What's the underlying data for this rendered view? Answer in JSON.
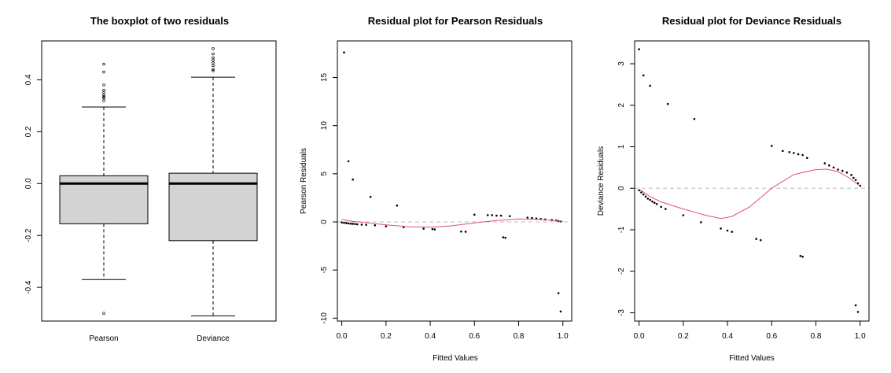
{
  "panels": [
    {
      "title": "The boxplot of two residuals",
      "categories": [
        "Pearson",
        "Deviance"
      ],
      "yticks": [
        "-0.4",
        "-0.2",
        "0.0",
        "0.2",
        "0.4"
      ]
    },
    {
      "title": "Residual plot for Pearson Residuals",
      "xlabel": "Fitted Values",
      "ylabel": "Pearson Residuals",
      "xticks": [
        "0.0",
        "0.2",
        "0.4",
        "0.6",
        "0.8",
        "1.0"
      ],
      "yticks": [
        "-10",
        "-5",
        "0",
        "5",
        "10",
        "15"
      ]
    },
    {
      "title": "Residual plot for Deviance Residuals",
      "xlabel": "Fitted Values",
      "ylabel": "Deviance Residuals",
      "xticks": [
        "0.0",
        "0.2",
        "0.4",
        "0.6",
        "0.8",
        "1.0"
      ],
      "yticks": [
        "-3",
        "-2",
        "-1",
        "0",
        "1",
        "2",
        "3"
      ]
    }
  ],
  "chart_data": [
    {
      "type": "boxplot",
      "title": "The boxplot of two residuals",
      "categories": [
        "Pearson",
        "Deviance"
      ],
      "ylim": [
        -0.53,
        0.55
      ],
      "box_color": "#d3d3d3",
      "boxes": [
        {
          "name": "Pearson",
          "lower_whisker": -0.37,
          "q1": -0.155,
          "median": 0.0,
          "q3": 0.03,
          "upper_whisker": 0.295,
          "outliers": [
            0.46,
            0.43,
            0.38,
            0.36,
            0.35,
            0.34,
            0.335,
            0.33,
            0.32,
            -0.5
          ]
        },
        {
          "name": "Deviance",
          "lower_whisker": -0.51,
          "q1": -0.22,
          "median": 0.0,
          "q3": 0.04,
          "upper_whisker": 0.41,
          "outliers": [
            0.52,
            0.5,
            0.485,
            0.475,
            0.465,
            0.455,
            0.44,
            0.435
          ]
        }
      ]
    },
    {
      "type": "scatter",
      "title": "Residual plot for Pearson Residuals",
      "xlabel": "Fitted Values",
      "ylabel": "Pearson Residuals",
      "xlim": [
        -0.02,
        1.04
      ],
      "ylim": [
        -10.3,
        18.8
      ],
      "reference_line": 0,
      "reference_color": "#bebebe",
      "smooth_color": "#df536b",
      "points": [
        [
          0.01,
          17.6
        ],
        [
          0.03,
          6.3
        ],
        [
          0.05,
          4.4
        ],
        [
          0.13,
          2.6
        ],
        [
          0.25,
          1.7
        ],
        [
          0.6,
          0.75
        ],
        [
          0.66,
          0.7
        ],
        [
          0.68,
          0.7
        ],
        [
          0.7,
          0.65
        ],
        [
          0.72,
          0.65
        ],
        [
          0.76,
          0.6
        ],
        [
          0.84,
          0.45
        ],
        [
          0.86,
          0.4
        ],
        [
          0.88,
          0.35
        ],
        [
          0.9,
          0.3
        ],
        [
          0.92,
          0.25
        ],
        [
          0.95,
          0.2
        ],
        [
          0.97,
          0.15
        ],
        [
          0.98,
          0.1
        ],
        [
          0.99,
          0.05
        ],
        [
          0.0,
          -0.05
        ],
        [
          0.01,
          -0.1
        ],
        [
          0.02,
          -0.12
        ],
        [
          0.03,
          -0.15
        ],
        [
          0.04,
          -0.18
        ],
        [
          0.05,
          -0.2
        ],
        [
          0.06,
          -0.22
        ],
        [
          0.07,
          -0.25
        ],
        [
          0.09,
          -0.28
        ],
        [
          0.11,
          -0.3
        ],
        [
          0.15,
          -0.35
        ],
        [
          0.2,
          -0.45
        ],
        [
          0.28,
          -0.55
        ],
        [
          0.37,
          -0.7
        ],
        [
          0.41,
          -0.75
        ],
        [
          0.42,
          -0.78
        ],
        [
          0.54,
          -1.0
        ],
        [
          0.56,
          -1.02
        ],
        [
          0.73,
          -1.6
        ],
        [
          0.74,
          -1.65
        ],
        [
          0.98,
          -7.4
        ],
        [
          0.99,
          -9.3
        ]
      ],
      "smooth": [
        [
          0.0,
          0.25
        ],
        [
          0.05,
          0.05
        ],
        [
          0.1,
          -0.05
        ],
        [
          0.2,
          -0.3
        ],
        [
          0.3,
          -0.5
        ],
        [
          0.4,
          -0.55
        ],
        [
          0.5,
          -0.4
        ],
        [
          0.6,
          -0.1
        ],
        [
          0.7,
          0.15
        ],
        [
          0.8,
          0.3
        ],
        [
          0.9,
          0.25
        ],
        [
          1.0,
          0.05
        ]
      ]
    },
    {
      "type": "scatter",
      "title": "Residual plot for Deviance Residuals",
      "xlabel": "Fitted Values",
      "ylabel": "Deviance Residuals",
      "xlim": [
        -0.02,
        1.04
      ],
      "ylim": [
        -3.2,
        3.55
      ],
      "reference_line": 0,
      "reference_color": "#bebebe",
      "smooth_color": "#df536b",
      "points": [
        [
          0.0,
          3.35
        ],
        [
          0.02,
          2.72
        ],
        [
          0.05,
          2.47
        ],
        [
          0.13,
          2.03
        ],
        [
          0.25,
          1.67
        ],
        [
          0.6,
          1.02
        ],
        [
          0.65,
          0.9
        ],
        [
          0.68,
          0.87
        ],
        [
          0.7,
          0.85
        ],
        [
          0.72,
          0.82
        ],
        [
          0.74,
          0.8
        ],
        [
          0.76,
          0.73
        ],
        [
          0.84,
          0.6
        ],
        [
          0.86,
          0.55
        ],
        [
          0.88,
          0.5
        ],
        [
          0.9,
          0.45
        ],
        [
          0.92,
          0.42
        ],
        [
          0.94,
          0.38
        ],
        [
          0.96,
          0.32
        ],
        [
          0.97,
          0.25
        ],
        [
          0.98,
          0.2
        ],
        [
          0.99,
          0.12
        ],
        [
          1.0,
          0.06
        ],
        [
          0.0,
          -0.05
        ],
        [
          0.01,
          -0.1
        ],
        [
          0.02,
          -0.15
        ],
        [
          0.03,
          -0.2
        ],
        [
          0.04,
          -0.25
        ],
        [
          0.05,
          -0.28
        ],
        [
          0.06,
          -0.32
        ],
        [
          0.07,
          -0.35
        ],
        [
          0.08,
          -0.38
        ],
        [
          0.1,
          -0.45
        ],
        [
          0.12,
          -0.5
        ],
        [
          0.2,
          -0.65
        ],
        [
          0.28,
          -0.82
        ],
        [
          0.37,
          -0.97
        ],
        [
          0.4,
          -1.02
        ],
        [
          0.42,
          -1.05
        ],
        [
          0.53,
          -1.22
        ],
        [
          0.55,
          -1.25
        ],
        [
          0.73,
          -1.63
        ],
        [
          0.74,
          -1.65
        ],
        [
          0.98,
          -2.82
        ],
        [
          0.99,
          -2.98
        ]
      ],
      "smooth": [
        [
          0.0,
          -0.02
        ],
        [
          0.05,
          -0.2
        ],
        [
          0.1,
          -0.33
        ],
        [
          0.2,
          -0.5
        ],
        [
          0.3,
          -0.65
        ],
        [
          0.37,
          -0.73
        ],
        [
          0.42,
          -0.68
        ],
        [
          0.5,
          -0.45
        ],
        [
          0.6,
          0.0
        ],
        [
          0.7,
          0.33
        ],
        [
          0.8,
          0.45
        ],
        [
          0.85,
          0.46
        ],
        [
          0.9,
          0.4
        ],
        [
          0.95,
          0.25
        ],
        [
          1.0,
          0.05
        ]
      ]
    }
  ]
}
